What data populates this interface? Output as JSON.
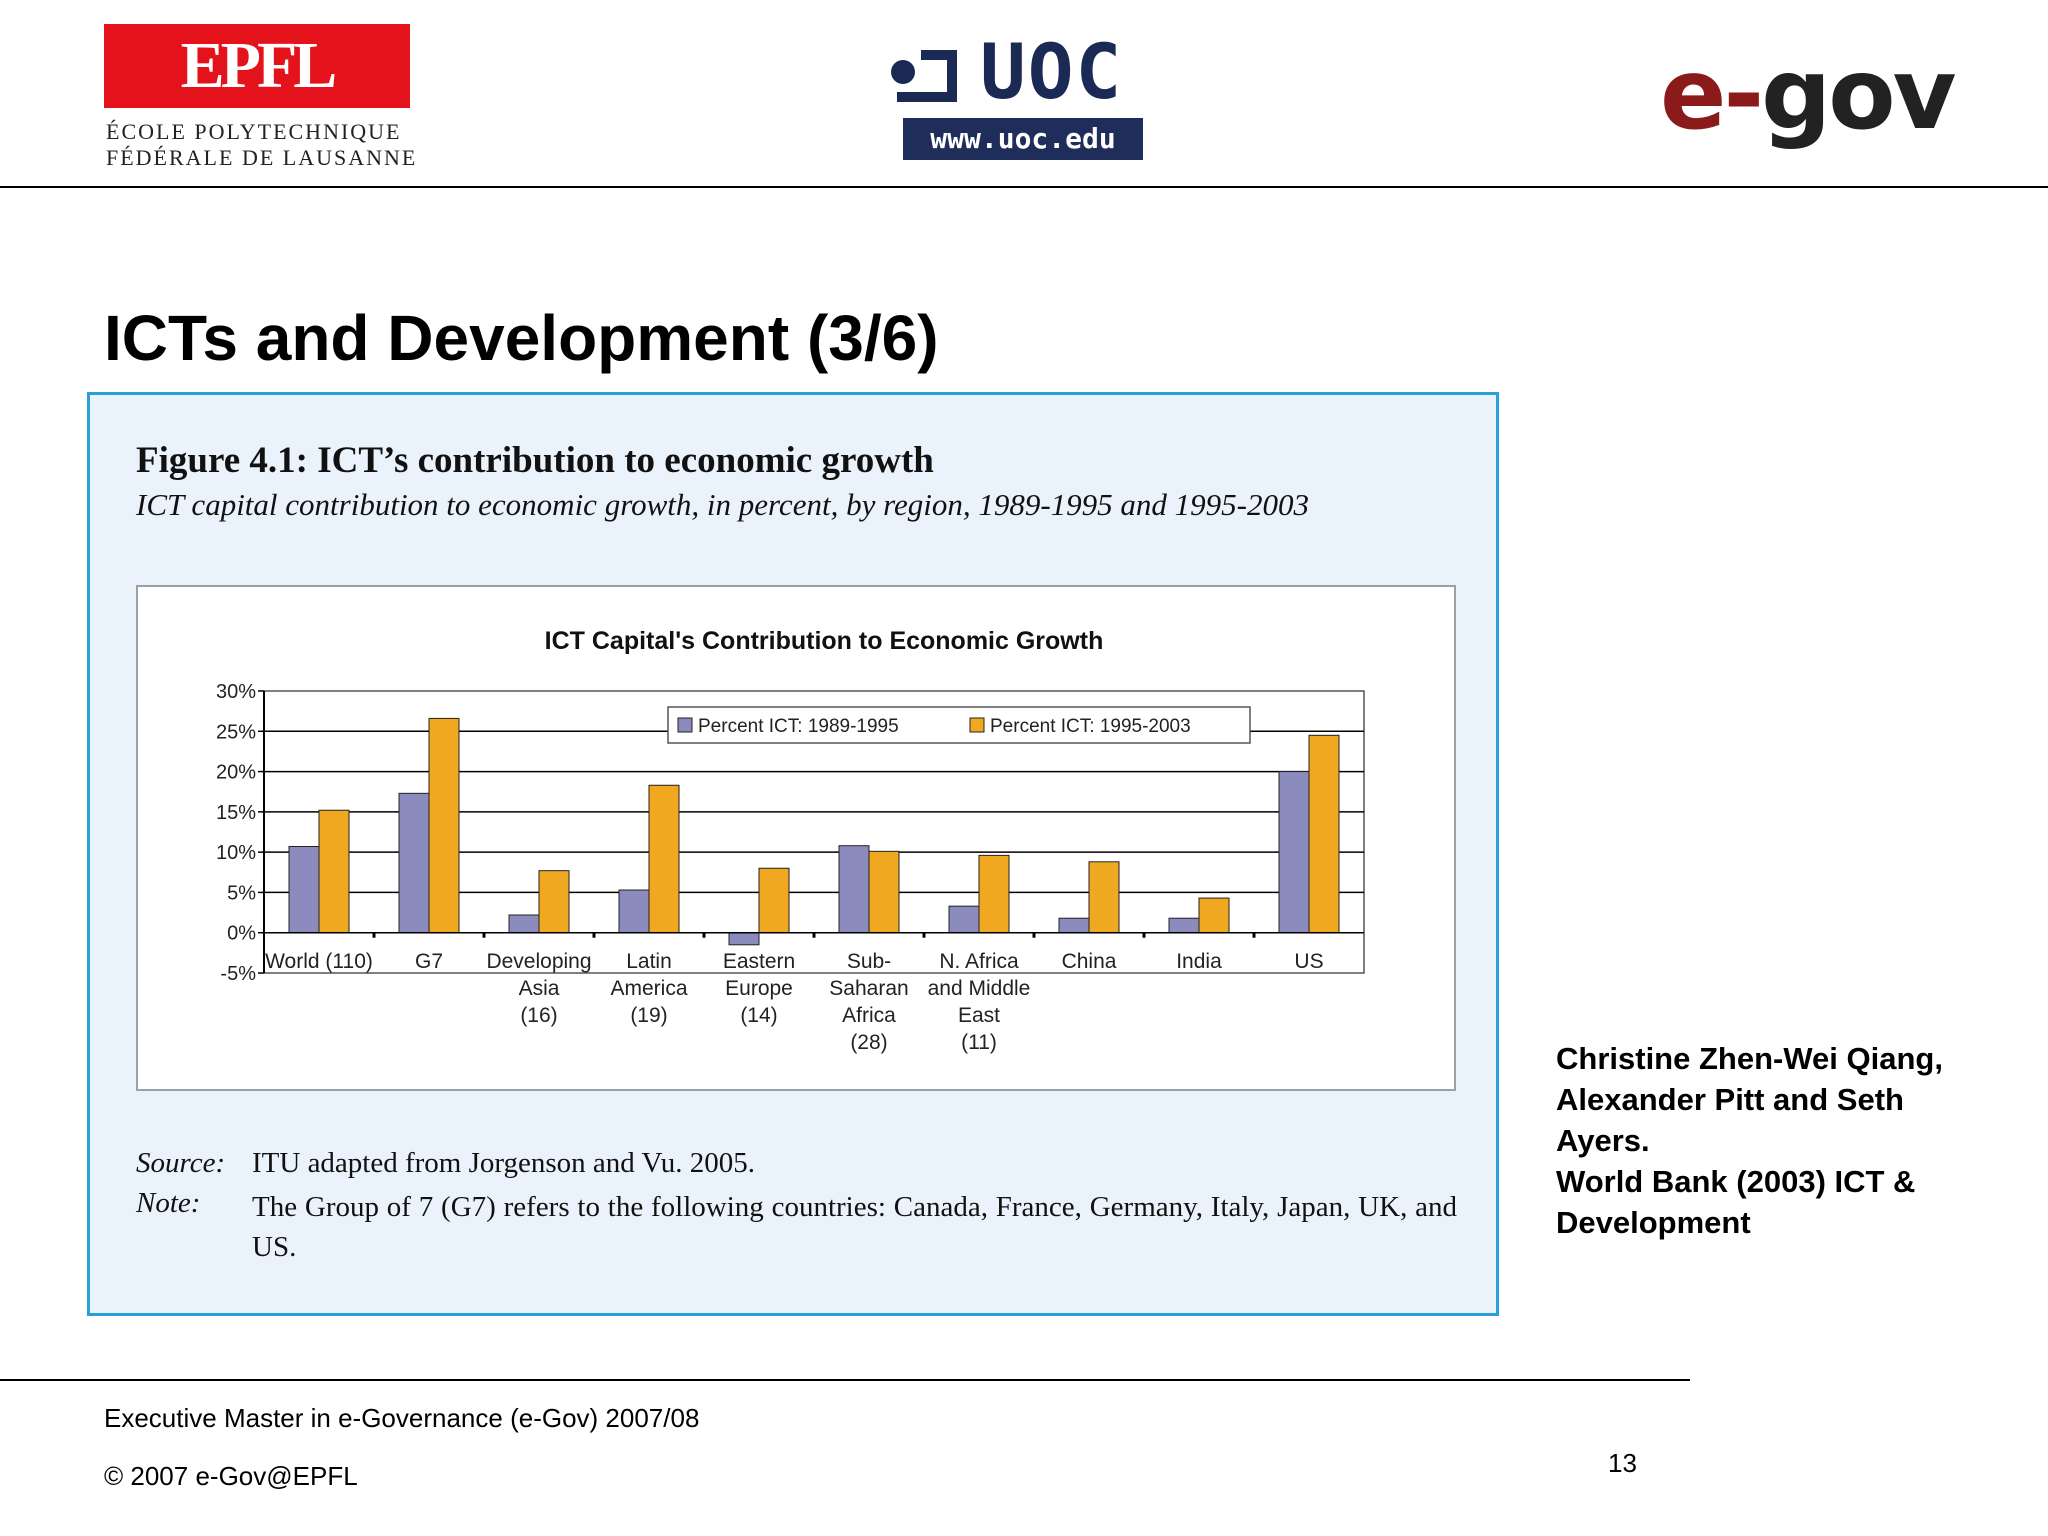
{
  "header": {
    "epfl": {
      "wordmark": "EPFL",
      "line1": "ÉCOLE POLYTECHNIQUE",
      "line2": "FÉDÉRALE DE LAUSANNE"
    },
    "uoc": {
      "wordmark": "UOC",
      "url": "www.uoc.edu"
    },
    "egov": {
      "prefix": "e-",
      "suffix": "gov"
    }
  },
  "slide": {
    "title": "ICTs and Development (3/6)"
  },
  "figure": {
    "title": "Figure 4.1: ICT’s contribution to economic growth",
    "subtitle": "ICT capital contribution to economic growth, in percent, by region, 1989-1995 and 1995-2003",
    "source_label": "Source:",
    "source_text": "ITU adapted from Jorgenson and Vu. 2005.",
    "note_label": "Note:",
    "note_text": "The Group of 7 (G7) refers to the following countries: Canada, France, Germany, Italy, Japan, UK, and US."
  },
  "chart_data": {
    "type": "bar",
    "title": "ICT Capital's Contribution to Economic Growth",
    "categories": [
      [
        "World (110)"
      ],
      [
        "G7"
      ],
      [
        "Developing",
        "Asia",
        "(16)"
      ],
      [
        "Latin",
        "America",
        "(19)"
      ],
      [
        "Eastern",
        "Europe",
        "(14)"
      ],
      [
        "Sub-",
        "Saharan",
        "Africa",
        "(28)"
      ],
      [
        "N. Africa",
        "and Middle",
        "East",
        "(11)"
      ],
      [
        "China"
      ],
      [
        "India"
      ],
      [
        "US"
      ]
    ],
    "series": [
      {
        "name": "Percent ICT: 1989-1995",
        "color": "#8b8bbd",
        "values": [
          10.7,
          17.3,
          2.2,
          5.3,
          -1.5,
          10.8,
          3.3,
          1.8,
          1.8,
          20.0
        ]
      },
      {
        "name": "Percent ICT: 1995-2003",
        "color": "#f0a820",
        "values": [
          15.2,
          26.6,
          7.7,
          18.3,
          8.0,
          10.1,
          9.6,
          8.8,
          4.3,
          24.5
        ]
      }
    ],
    "ylim": [
      -5,
      30
    ],
    "yticks": [
      "-5%",
      "0%",
      "5%",
      "10%",
      "15%",
      "20%",
      "25%",
      "30%"
    ],
    "ytick_values": [
      -5,
      0,
      5,
      10,
      15,
      20,
      25,
      30
    ],
    "grid": true,
    "legend": "top-right"
  },
  "citation": {
    "lines": [
      "Christine Zhen-Wei Qiang,",
      "Alexander Pitt and Seth",
      "Ayers.",
      "World Bank (2003) ICT &",
      "Development"
    ]
  },
  "footer": {
    "program": "Executive Master in e-Governance  (e-Gov)  2007/08",
    "copyright": "© 2007  e-Gov@EPFL",
    "page_number": "13"
  }
}
